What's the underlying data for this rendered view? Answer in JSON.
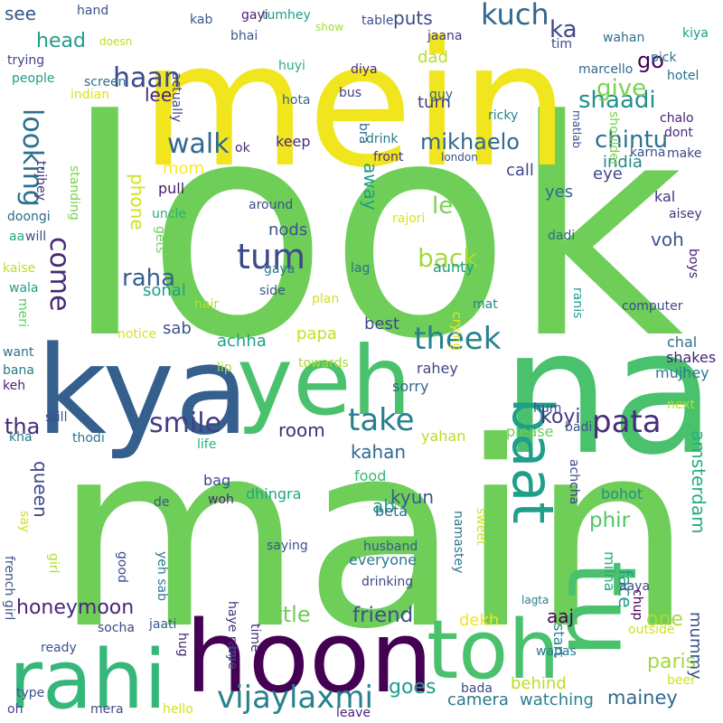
{
  "words": [
    {
      "text": "look",
      "color": "#6ece58"
    },
    {
      "text": "main",
      "color": "#6ece58"
    },
    {
      "text": "mein",
      "color": "#f1e51d"
    },
    {
      "text": "na",
      "color": "#4ac16d"
    },
    {
      "text": "kya",
      "color": "#355f8d"
    },
    {
      "text": "hoon",
      "color": "#440154"
    },
    {
      "text": "yeh",
      "color": "#4ac16d"
    },
    {
      "text": "toh",
      "color": "#4ac16d"
    },
    {
      "text": "tu",
      "color": "#4ac16d"
    },
    {
      "text": "rahi",
      "color": "#35b779"
    },
    {
      "text": "baat",
      "color": "#1f9e89"
    },
    {
      "text": "vijaylaxmi",
      "color": "#26828e"
    },
    {
      "text": "tum",
      "color": "#3e4989"
    },
    {
      "text": "pata",
      "color": "#472c7a"
    },
    {
      "text": "take",
      "color": "#277f8e"
    },
    {
      "text": "smile",
      "color": "#433e85"
    },
    {
      "text": "theek",
      "color": "#26828e"
    },
    {
      "text": "kuch",
      "color": "#31688e"
    },
    {
      "text": "haan",
      "color": "#3e4989"
    },
    {
      "text": "walk",
      "color": "#31688e"
    },
    {
      "text": "chintu",
      "color": "#2c728e"
    },
    {
      "text": "shaadi",
      "color": "#21918c"
    },
    {
      "text": "give",
      "color": "#7ad151"
    },
    {
      "text": "looking",
      "color": "#2c728e"
    },
    {
      "text": "come",
      "color": "#482878"
    },
    {
      "text": "back",
      "color": "#a5db36"
    },
    {
      "text": "mikhaelo",
      "color": "#31688e"
    },
    {
      "text": "honeymoon",
      "color": "#482878"
    },
    {
      "text": "tha",
      "color": "#482878"
    },
    {
      "text": "raha",
      "color": "#355f8d"
    },
    {
      "text": "friend",
      "color": "#3b528b"
    },
    {
      "text": "go",
      "color": "#440154"
    },
    {
      "text": "koyi",
      "color": "#443983"
    },
    {
      "text": "head",
      "color": "#1f9e89"
    },
    {
      "text": "ka",
      "color": "#3e4989"
    },
    {
      "text": "le",
      "color": "#7ad151"
    },
    {
      "text": "phir",
      "color": "#52c569"
    },
    {
      "text": "goes",
      "color": "#1f9e89"
    },
    {
      "text": "little",
      "color": "#6ece58"
    },
    {
      "text": "mainey",
      "color": "#31688e"
    },
    {
      "text": "amsterdam",
      "color": "#28ae80"
    },
    {
      "text": "kahan",
      "color": "#31688e"
    },
    {
      "text": "room",
      "color": "#472c7a"
    },
    {
      "text": "phone",
      "color": "#d2e21b"
    },
    {
      "text": "away",
      "color": "#1f9e89"
    },
    {
      "text": "voh",
      "color": "#39568c"
    },
    {
      "text": "queen",
      "color": "#3e4989"
    },
    {
      "text": "paris",
      "color": "#a0da39"
    },
    {
      "text": "one",
      "color": "#a5db36"
    },
    {
      "text": "face",
      "color": "#1fa187"
    },
    {
      "text": "see",
      "color": "#39568c"
    },
    {
      "text": "lee",
      "color": "#482475"
    },
    {
      "text": "puts",
      "color": "#3f4788"
    },
    {
      "text": "dad",
      "color": "#b5de2b"
    },
    {
      "text": "turn",
      "color": "#443983"
    },
    {
      "text": "mom",
      "color": "#fde725"
    },
    {
      "text": "nods",
      "color": "#3b528b"
    },
    {
      "text": "sab",
      "color": "#3b528b"
    },
    {
      "text": "achha",
      "color": "#1fa187"
    },
    {
      "text": "ab",
      "color": "#20a486"
    },
    {
      "text": "kyun",
      "color": "#375b8d"
    },
    {
      "text": "start",
      "color": "#24878e"
    },
    {
      "text": "aaj",
      "color": "#440154"
    },
    {
      "text": "dekh",
      "color": "#f1e51d"
    },
    {
      "text": "behind",
      "color": "#b8de29"
    },
    {
      "text": "camera",
      "color": "#2a788e"
    },
    {
      "text": "watching",
      "color": "#26828e"
    },
    {
      "text": "mummy",
      "color": "#3b528b"
    },
    {
      "text": "call",
      "color": "#3e4989"
    },
    {
      "text": "yes",
      "color": "#306a8e"
    },
    {
      "text": "eye",
      "color": "#3f4889"
    },
    {
      "text": "india",
      "color": "#23888e"
    },
    {
      "text": "keep",
      "color": "#472c7a"
    },
    {
      "text": "pull",
      "color": "#481a6c"
    },
    {
      "text": "sonal",
      "color": "#1f9e89"
    },
    {
      "text": "best",
      "color": "#3e4989"
    },
    {
      "text": "papa",
      "color": "#c2df23"
    },
    {
      "text": "chal",
      "color": "#2d708e"
    },
    {
      "text": "shakes",
      "color": "#482475"
    },
    {
      "text": "mujhey",
      "color": "#2a788e"
    },
    {
      "text": "rahey",
      "color": "#404588"
    },
    {
      "text": "sorry",
      "color": "#31688e"
    },
    {
      "text": "yahan",
      "color": "#b8de29"
    },
    {
      "text": "please",
      "color": "#6ece58"
    },
    {
      "text": "food",
      "color": "#35b779"
    },
    {
      "text": "beta",
      "color": "#2e6e8e"
    },
    {
      "text": "bohot",
      "color": "#228c8d"
    },
    {
      "text": "milna",
      "color": "#28ae80"
    },
    {
      "text": "everyone",
      "color": "#2a788e"
    },
    {
      "text": "husband",
      "color": "#38598c"
    },
    {
      "text": "saying",
      "color": "#3b528b"
    },
    {
      "text": "dhingra",
      "color": "#20a486"
    },
    {
      "text": "bag",
      "color": "#3e4a89"
    },
    {
      "text": "woh",
      "color": "#482878"
    },
    {
      "text": "de",
      "color": "#3b528b"
    },
    {
      "text": "life",
      "color": "#29af7f"
    },
    {
      "text": "thodi",
      "color": "#2c728e"
    },
    {
      "text": "kha",
      "color": "#2a788e"
    },
    {
      "text": "still",
      "color": "#3e4989"
    },
    {
      "text": "bana",
      "color": "#29798e"
    },
    {
      "text": "want",
      "color": "#2b748e"
    },
    {
      "text": "notice",
      "color": "#d8e219"
    },
    {
      "text": "hair",
      "color": "#b5de2b"
    },
    {
      "text": "side",
      "color": "#3b528b"
    },
    {
      "text": "gaya",
      "color": "#2a788e"
    },
    {
      "text": "lag",
      "color": "#2d708e"
    },
    {
      "text": "aunty",
      "color": "#1e9c89"
    },
    {
      "text": "plan",
      "color": "#d0e11c"
    },
    {
      "text": "mat",
      "color": "#24878e"
    },
    {
      "text": "ranis",
      "color": "#1f9e89"
    },
    {
      "text": "computer",
      "color": "#3e4989"
    },
    {
      "text": "dadi",
      "color": "#30698e"
    },
    {
      "text": "rajori",
      "color": "#dde318"
    },
    {
      "text": "around",
      "color": "#3c4f8a"
    },
    {
      "text": "kal",
      "color": "#46327e"
    },
    {
      "text": "aisey",
      "color": "#46327e"
    },
    {
      "text": "boys",
      "color": "#482173"
    },
    {
      "text": "make",
      "color": "#3f4889"
    },
    {
      "text": "dont",
      "color": "#472c7a"
    },
    {
      "text": "pick",
      "color": "#2c728e"
    },
    {
      "text": "hotel",
      "color": "#2c718e"
    },
    {
      "text": "marcello",
      "color": "#31688e"
    },
    {
      "text": "chalo",
      "color": "#482475"
    },
    {
      "text": "karna",
      "color": "#3b528b"
    },
    {
      "text": "shoulder",
      "color": "#7ad151"
    },
    {
      "text": "matlab",
      "color": "#3e4989"
    },
    {
      "text": "london",
      "color": "#3b528b"
    },
    {
      "text": "front",
      "color": "#46327e"
    },
    {
      "text": "drink",
      "color": "#2a788e"
    },
    {
      "text": "bra",
      "color": "#31688e"
    },
    {
      "text": "ricky",
      "color": "#24878e"
    },
    {
      "text": "guy",
      "color": "#31688e"
    },
    {
      "text": "bus",
      "color": "#433e85"
    },
    {
      "text": "diya",
      "color": "#472c7a"
    },
    {
      "text": "hota",
      "color": "#31688e"
    },
    {
      "text": "huyi",
      "color": "#29af7f"
    },
    {
      "text": "jaana",
      "color": "#453882"
    },
    {
      "text": "tim",
      "color": "#3e4989"
    },
    {
      "text": "wahan",
      "color": "#2e6e8e"
    },
    {
      "text": "kiya",
      "color": "#1f9e89"
    },
    {
      "text": "table",
      "color": "#3b528b"
    },
    {
      "text": "show",
      "color": "#a5db36"
    },
    {
      "text": "tumhey",
      "color": "#1f9e89"
    },
    {
      "text": "bhai",
      "color": "#38598c"
    },
    {
      "text": "gayi",
      "color": "#481f70"
    },
    {
      "text": "kab",
      "color": "#38588c"
    },
    {
      "text": "hand",
      "color": "#3b528b"
    },
    {
      "text": "doesn",
      "color": "#bddf26"
    },
    {
      "text": "screen",
      "color": "#2c728e"
    },
    {
      "text": "trying",
      "color": "#414487"
    },
    {
      "text": "people",
      "color": "#1f9e89"
    },
    {
      "text": "indian",
      "color": "#dde318"
    },
    {
      "text": "actually",
      "color": "#3e4989"
    },
    {
      "text": "ok",
      "color": "#482878"
    },
    {
      "text": "tujhey",
      "color": "#453781"
    },
    {
      "text": "standing",
      "color": "#7ad151"
    },
    {
      "text": "doongi",
      "color": "#2f6c8e"
    },
    {
      "text": "will",
      "color": "#3e4989"
    },
    {
      "text": "aa",
      "color": "#22a884"
    },
    {
      "text": "kaise",
      "color": "#bddf26"
    },
    {
      "text": "gets",
      "color": "#6ece58"
    },
    {
      "text": "uncle",
      "color": "#29af7f"
    },
    {
      "text": "wala",
      "color": "#1f9e89"
    },
    {
      "text": "meri",
      "color": "#5ec962"
    },
    {
      "text": "keh",
      "color": "#482475"
    },
    {
      "text": "lip",
      "color": "#a5db36"
    },
    {
      "text": "towards",
      "color": "#a8db34"
    },
    {
      "text": "crying",
      "color": "#efe51c"
    },
    {
      "text": "hum",
      "color": "#3c4f8a"
    },
    {
      "text": "badi",
      "color": "#3b528b"
    },
    {
      "text": "next",
      "color": "#b5de2b"
    },
    {
      "text": "achcha",
      "color": "#3e4989"
    },
    {
      "text": "sweet",
      "color": "#d0e11c"
    },
    {
      "text": "namastey",
      "color": "#2a788e"
    },
    {
      "text": "say",
      "color": "#d0e11c"
    },
    {
      "text": "french girl",
      "color": "#3b528b"
    },
    {
      "text": "girl",
      "color": "#addc30"
    },
    {
      "text": "good",
      "color": "#3e4989"
    },
    {
      "text": "yeh sab",
      "color": "#29788e"
    },
    {
      "text": "haye ram",
      "color": "#46327e"
    },
    {
      "text": "drinking",
      "color": "#3e4989"
    },
    {
      "text": "aaya",
      "color": "#3f4889"
    },
    {
      "text": "chup",
      "color": "#440154"
    },
    {
      "text": "lagta",
      "color": "#26828e"
    },
    {
      "text": "bada",
      "color": "#3e4989"
    },
    {
      "text": "socha",
      "color": "#3e4989"
    },
    {
      "text": "jaati",
      "color": "#375a8c"
    },
    {
      "text": "ready",
      "color": "#39568c"
    },
    {
      "text": "time",
      "color": "#46307e"
    },
    {
      "text": "bye",
      "color": "#3e4989"
    },
    {
      "text": "hug",
      "color": "#482475"
    },
    {
      "text": "wapas",
      "color": "#2a788e"
    },
    {
      "text": "outside",
      "color": "#d0e11c"
    },
    {
      "text": "beer",
      "color": "#d0e11c"
    },
    {
      "text": "type",
      "color": "#3b528b"
    },
    {
      "text": "oh",
      "color": "#3e4989"
    },
    {
      "text": "mera",
      "color": "#3e4989"
    },
    {
      "text": "hello",
      "color": "#d0e11c"
    },
    {
      "text": "leave",
      "color": "#482878"
    },
    {
      "text": "french",
      "color": "#d0e11c"
    }
  ]
}
